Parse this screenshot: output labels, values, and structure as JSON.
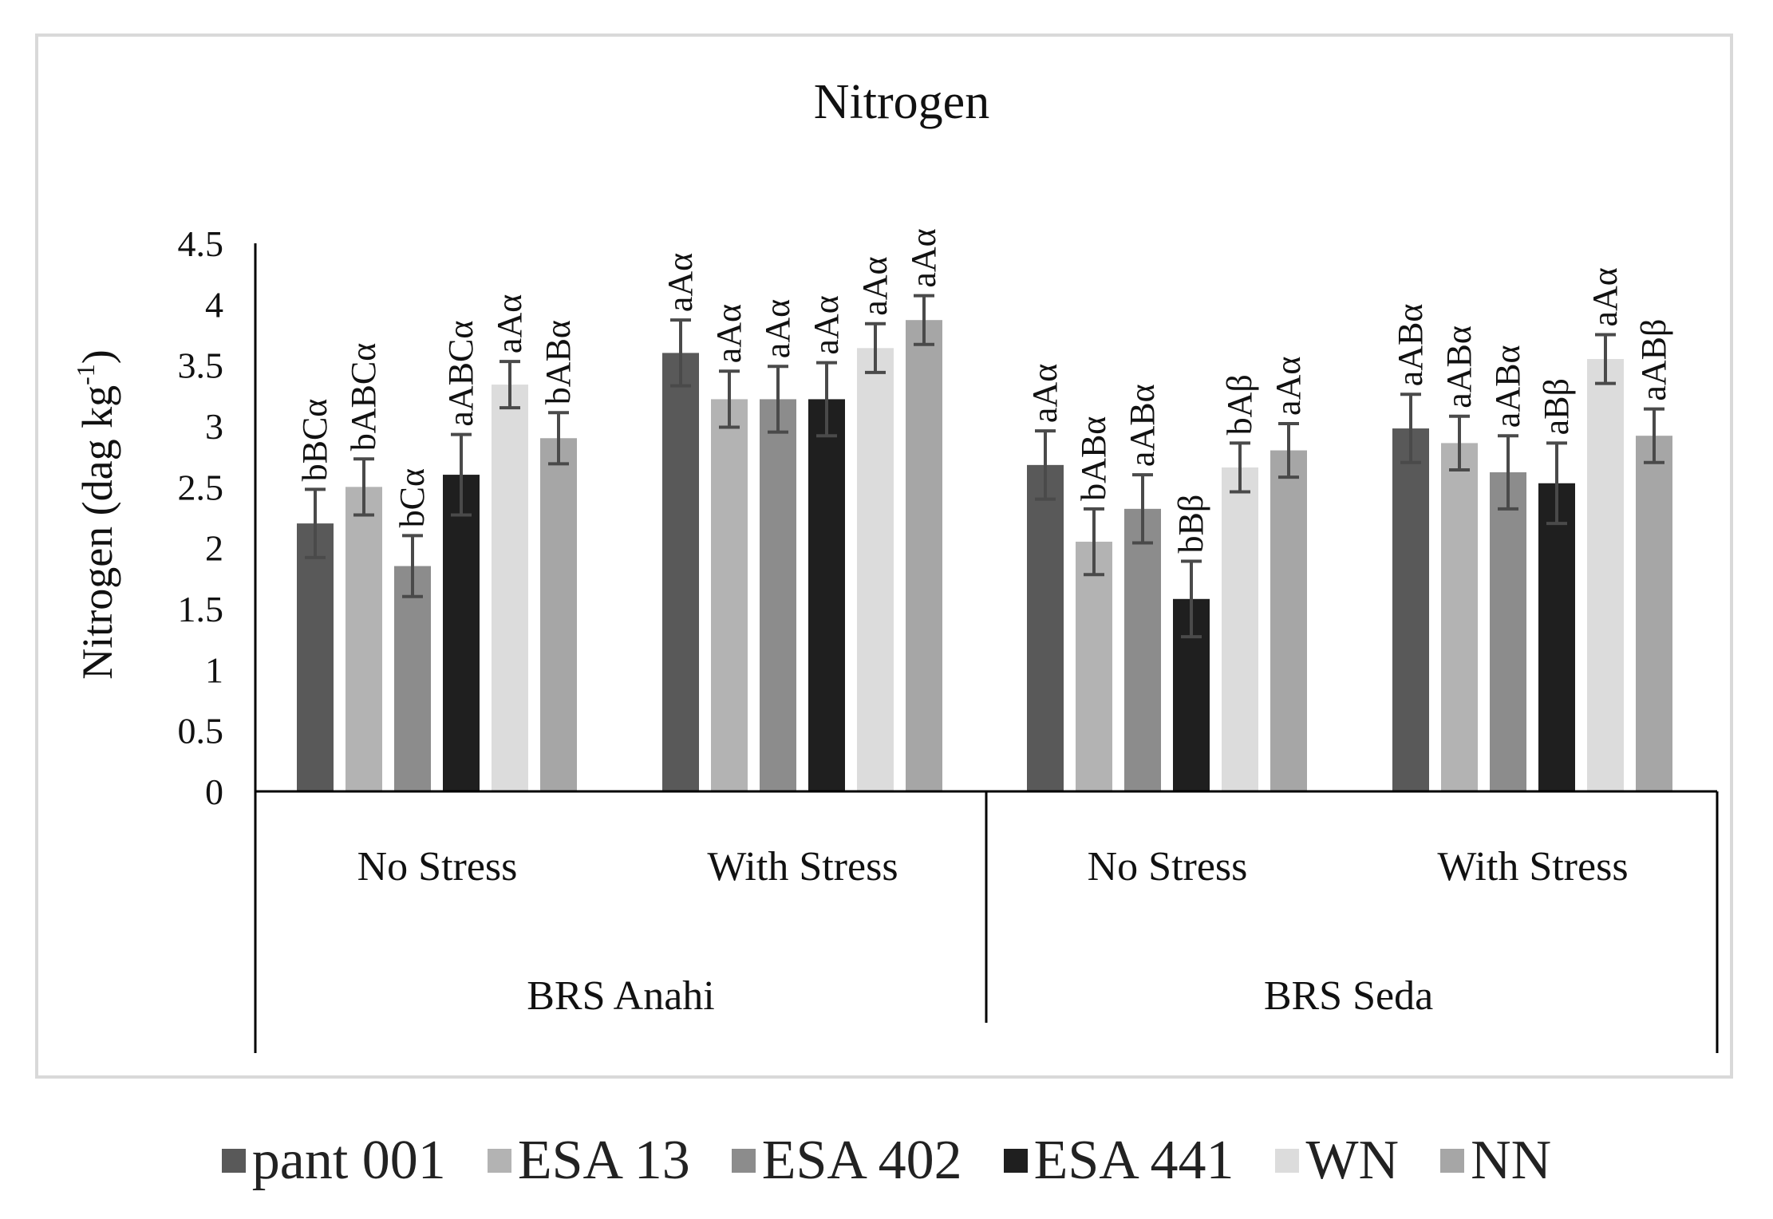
{
  "chart_data": {
    "type": "bar",
    "title": "Nitrogen",
    "ylabel_main": "Nitrogen (dag kg",
    "ylabel_sup": "-1",
    "ylabel_close": ")",
    "ylim": [
      0,
      4.5
    ],
    "yticks": [
      "0",
      "0.5",
      "1",
      "1.5",
      "2",
      "2.5",
      "3",
      "3.5",
      "4",
      "4.5"
    ],
    "groups": [
      {
        "name": "BRS Anahi",
        "subgroups": [
          "No Stress",
          "With Stress"
        ]
      },
      {
        "name": "BRS Seda",
        "subgroups": [
          "No Stress",
          "With Stress"
        ]
      }
    ],
    "categories": [
      "BRS Anahi No Stress",
      "BRS Anahi With Stress",
      "BRS Seda No Stress",
      "BRS Seda With Stress"
    ],
    "series": [
      {
        "name": "pant 001",
        "color": "#595959",
        "values": [
          2.2,
          3.6,
          2.68,
          2.98
        ],
        "errors": [
          0.28,
          0.27,
          0.28,
          0.28
        ],
        "letters": [
          "bBCα",
          "aAα",
          "aAα",
          "aABα"
        ]
      },
      {
        "name": "ESA 13",
        "color": "#b3b3b3",
        "values": [
          2.5,
          3.22,
          2.05,
          2.86
        ],
        "errors": [
          0.23,
          0.23,
          0.27,
          0.22
        ],
        "letters": [
          "bABCα",
          "aAα",
          "bABα",
          "aABα"
        ]
      },
      {
        "name": "ESA 402",
        "color": "#8c8c8c",
        "values": [
          1.85,
          3.22,
          2.32,
          2.62
        ],
        "errors": [
          0.25,
          0.27,
          0.28,
          0.3
        ],
        "letters": [
          "bCα",
          "aAα",
          "aABα",
          "aABα"
        ]
      },
      {
        "name": "ESA 441",
        "color": "#1f1f1f",
        "values": [
          2.6,
          3.22,
          1.58,
          2.53
        ],
        "errors": [
          0.33,
          0.3,
          0.31,
          0.33
        ],
        "letters": [
          "aABCα",
          "aAα",
          "bBβ",
          "aBβ"
        ]
      },
      {
        "name": "WN",
        "color": "#dcdcdc",
        "values": [
          3.34,
          3.64,
          2.66,
          3.55
        ],
        "errors": [
          0.19,
          0.2,
          0.2,
          0.2
        ],
        "letters": [
          "aAα",
          "aAα",
          "bAβ",
          "aAα"
        ]
      },
      {
        "name": "NN",
        "color": "#a6a6a6",
        "values": [
          2.9,
          3.87,
          2.8,
          2.92
        ],
        "errors": [
          0.21,
          0.2,
          0.22,
          0.22
        ],
        "letters": [
          "bABα",
          "aAα",
          "aAα",
          "aABβ"
        ]
      }
    ],
    "legend_position": "bottom"
  }
}
